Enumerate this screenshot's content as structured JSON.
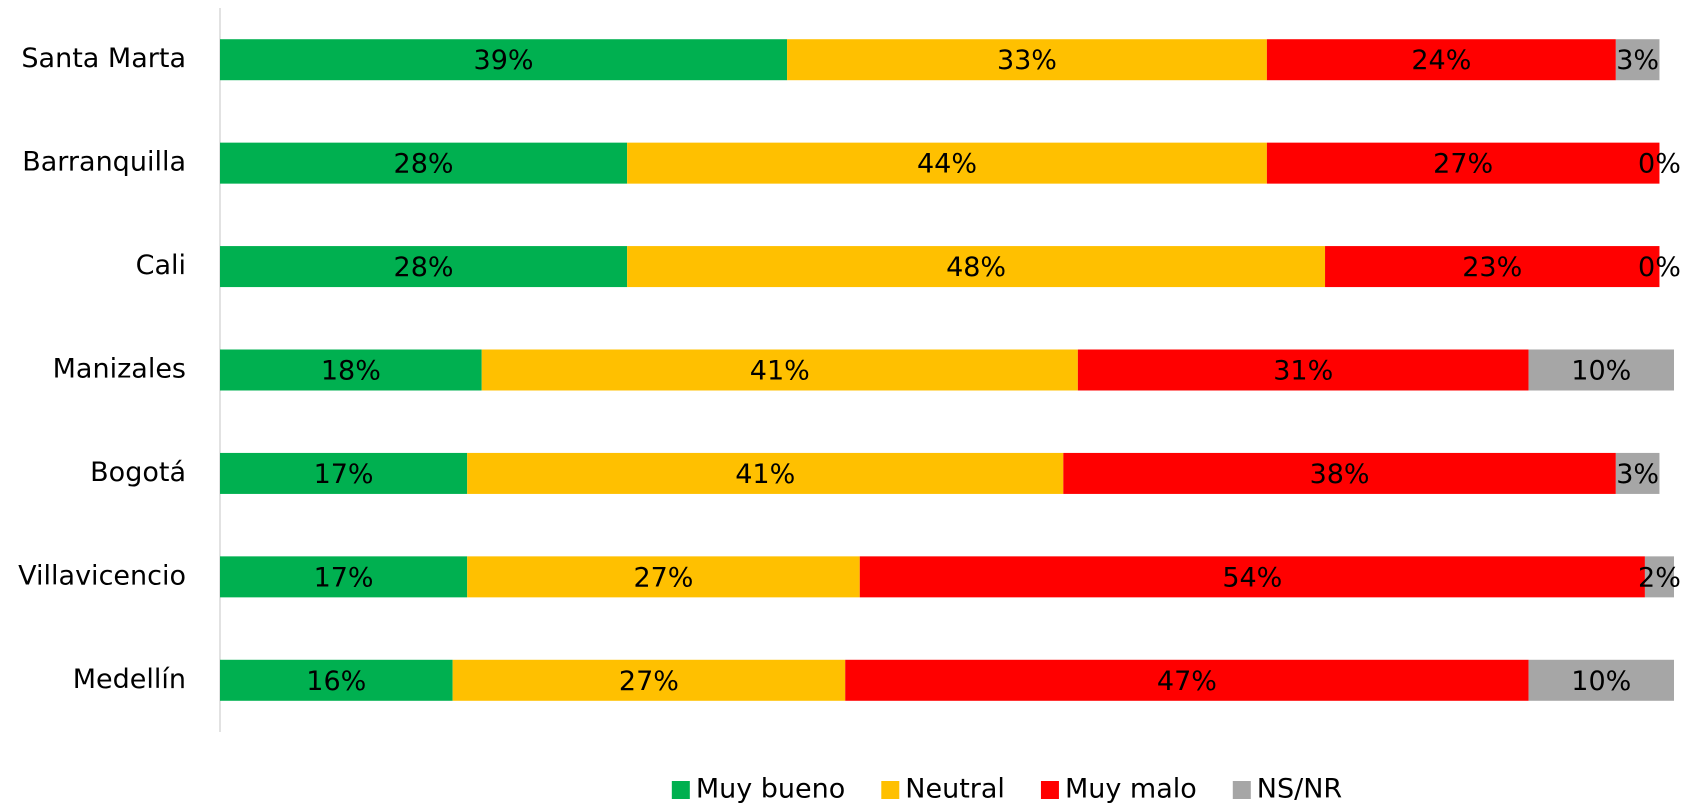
{
  "chart_data": {
    "type": "stacked_bar_horizontal",
    "categories": [
      "Santa Marta",
      "Barranquilla",
      "Cali",
      "Manizales",
      "Bogotá",
      "Villavicencio",
      "Medellín"
    ],
    "xlim": [
      0,
      100
    ],
    "legend": "bottom",
    "series": [
      {
        "name": "Muy bueno",
        "color": "#00b050",
        "values": [
          39,
          28,
          28,
          18,
          17,
          17,
          16
        ],
        "value_labels": [
          "39%",
          "28%",
          "28%",
          "18%",
          "17%",
          "17%",
          "16%"
        ]
      },
      {
        "name": "Neutral",
        "color": "#ffc000",
        "values": [
          33,
          44,
          48,
          41,
          41,
          27,
          27
        ],
        "value_labels": [
          "33%",
          "44%",
          "48%",
          "41%",
          "41%",
          "27%",
          "27%"
        ]
      },
      {
        "name": "Muy malo",
        "color": "#ff0000",
        "values": [
          24,
          27,
          23,
          31,
          38,
          54,
          47
        ],
        "value_labels": [
          "24%",
          "27%",
          "23%",
          "31%",
          "38%",
          "54%",
          "47%"
        ]
      },
      {
        "name": "NS/NR",
        "color": "#a6a6a6",
        "values": [
          3,
          0,
          0,
          10,
          3,
          2,
          10
        ],
        "value_labels": [
          "3%",
          "0%",
          "0%",
          "10%",
          "3%",
          "2%",
          "10%"
        ]
      }
    ]
  }
}
